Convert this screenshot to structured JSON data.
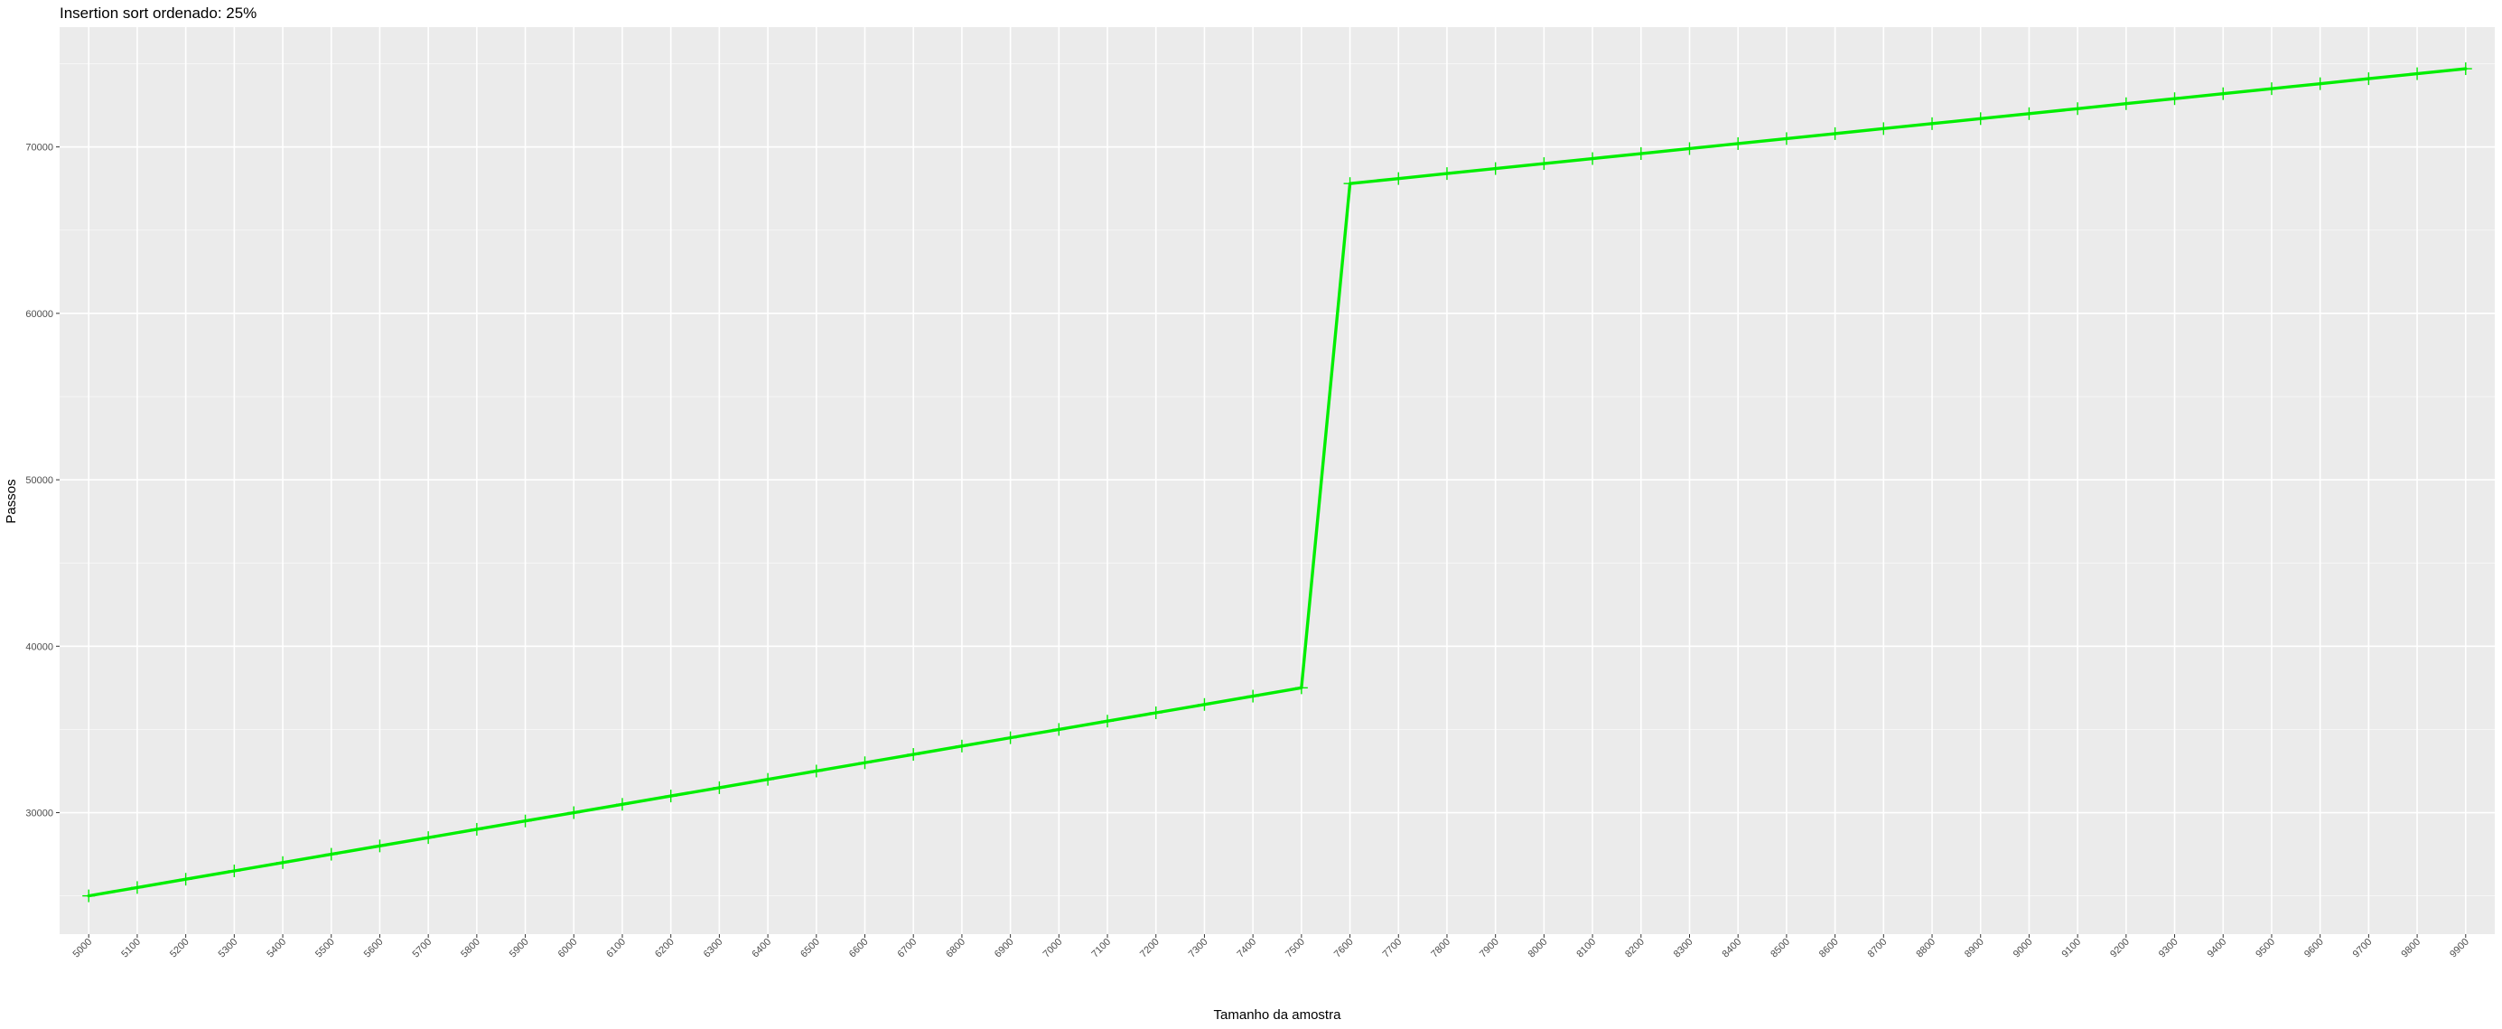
{
  "chart_data": {
    "type": "line",
    "title": "Insertion sort ordenado: 25%",
    "xlabel": "Tamanho da amostra",
    "ylabel": "Passos",
    "colors": {
      "line": "#00ee00",
      "panel": "#ebebeb",
      "grid": "#ffffff",
      "tick_text": "#4d4d4d"
    },
    "grid": true,
    "x": [
      5000,
      5100,
      5200,
      5300,
      5400,
      5500,
      5600,
      5700,
      5800,
      5900,
      6000,
      6100,
      6200,
      6300,
      6400,
      6500,
      6600,
      6700,
      6800,
      6900,
      7000,
      7100,
      7200,
      7300,
      7400,
      7500,
      7600,
      7700,
      7800,
      7900,
      8000,
      8100,
      8200,
      8300,
      8400,
      8500,
      8600,
      8700,
      8800,
      8900,
      9000,
      9100,
      9200,
      9300,
      9400,
      9500,
      9600,
      9700,
      9800,
      9900
    ],
    "xticks": [
      "5000",
      "5100",
      "5200",
      "5300",
      "5400",
      "5500",
      "5600",
      "5700",
      "5800",
      "5900",
      "6000",
      "6100",
      "6200",
      "6300",
      "6400",
      "6500",
      "6600",
      "6700",
      "6800",
      "6900",
      "7000",
      "7100",
      "7200",
      "7300",
      "7400",
      "7500",
      "7600",
      "7700",
      "7800",
      "7900",
      "8000",
      "8100",
      "8200",
      "8300",
      "8400",
      "8500",
      "8600",
      "8700",
      "8800",
      "8900",
      "9000",
      "9100",
      "9200",
      "9300",
      "9400",
      "9500",
      "9600",
      "9700",
      "9800",
      "9900"
    ],
    "series": [
      {
        "name": "Passos",
        "values": [
          25000,
          25500,
          26000,
          26500,
          27000,
          27500,
          28000,
          28500,
          29000,
          29500,
          30000,
          30500,
          31000,
          31500,
          32000,
          32500,
          33000,
          33500,
          34000,
          34500,
          35000,
          35500,
          36000,
          36500,
          37000,
          37500,
          67800,
          68100,
          68400,
          68700,
          69000,
          69300,
          69600,
          69900,
          70200,
          70500,
          70800,
          71100,
          71400,
          71700,
          72000,
          72300,
          72600,
          72900,
          73200,
          73500,
          73800,
          74100,
          74400,
          74700
        ]
      }
    ],
    "yticks": [
      "30000",
      "40000",
      "50000",
      "60000",
      "70000"
    ],
    "ytick_values": [
      30000,
      40000,
      50000,
      60000,
      70000
    ],
    "ylim": [
      22700,
      77200
    ],
    "xlim": [
      4940,
      9960
    ]
  }
}
